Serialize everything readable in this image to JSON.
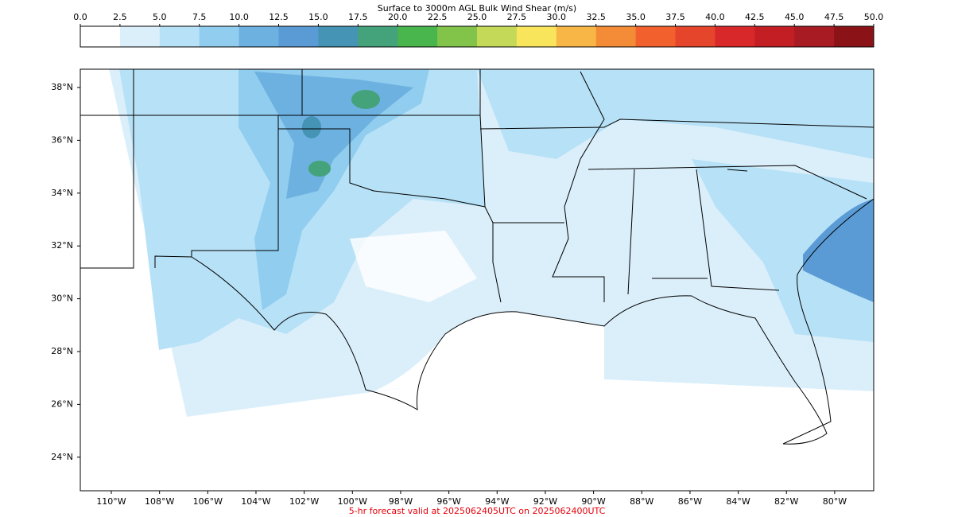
{
  "colorbar": {
    "title": "Surface to 3000m AGL Bulk Wind Shear (m/s)",
    "ticks": [
      {
        "value": 0,
        "label": "0.0"
      },
      2.5,
      {
        "value": 5,
        "label": "5.0"
      },
      7.5,
      {
        "value": 10,
        "label": "10.0"
      },
      12.5,
      {
        "value": 15,
        "label": "15.0"
      },
      17.5,
      {
        "value": 20,
        "label": "20.0"
      },
      22.5,
      {
        "value": 25,
        "label": "25.0"
      },
      27.5,
      {
        "value": 30,
        "label": "30.0"
      },
      32.5,
      {
        "value": 35,
        "label": "35.0"
      },
      37.5,
      {
        "value": 40,
        "label": "40.0"
      },
      42.5,
      {
        "value": 45,
        "label": "45.0"
      },
      47.5,
      {
        "value": 50,
        "label": "50.0"
      }
    ],
    "colors": [
      "#ffffff",
      "#dbeffb",
      "#b7e1f6",
      "#90cdef",
      "#6db1e0",
      "#5b9bd5",
      "#4593b5",
      "#45a37b",
      "#49b54d",
      "#82c44a",
      "#c3d957",
      "#f8e55b",
      "#f8b646",
      "#f48b37",
      "#f1602d",
      "#e5452b",
      "#d8282a",
      "#c41e25",
      "#a91b22",
      "#8b1318"
    ]
  },
  "map": {
    "lat_ticks": [
      {
        "value": 38,
        "label": "38°N"
      },
      {
        "value": 36,
        "label": "36°N"
      },
      {
        "value": 34,
        "label": "34°N"
      },
      {
        "value": 32,
        "label": "32°N"
      },
      {
        "value": 30,
        "label": "30°N"
      },
      {
        "value": 28,
        "label": "28°N"
      },
      {
        "value": 26,
        "label": "26°N"
      },
      {
        "value": 24,
        "label": "24°N"
      }
    ],
    "lon_ticks": [
      {
        "value": -110,
        "label": "110°W"
      },
      {
        "value": -108,
        "label": "108°W"
      },
      {
        "value": -106,
        "label": "106°W"
      },
      {
        "value": -104,
        "label": "104°W"
      },
      {
        "value": -102,
        "label": "102°W"
      },
      {
        "value": -100,
        "label": "100°W"
      },
      {
        "value": -98,
        "label": "98°W"
      },
      {
        "value": -96,
        "label": "96°W"
      },
      {
        "value": -94,
        "label": "94°W"
      },
      {
        "value": -92,
        "label": "92°W"
      },
      {
        "value": -90,
        "label": "90°W"
      },
      {
        "value": -88,
        "label": "88°W"
      },
      {
        "value": -86,
        "label": "86°W"
      },
      {
        "value": -84,
        "label": "84°W"
      },
      {
        "value": -82,
        "label": "82°W"
      },
      {
        "value": -80,
        "label": "80°W"
      }
    ]
  },
  "footer": "5-hr forecast valid at 2025062405UTC on 2025062400UTC"
}
